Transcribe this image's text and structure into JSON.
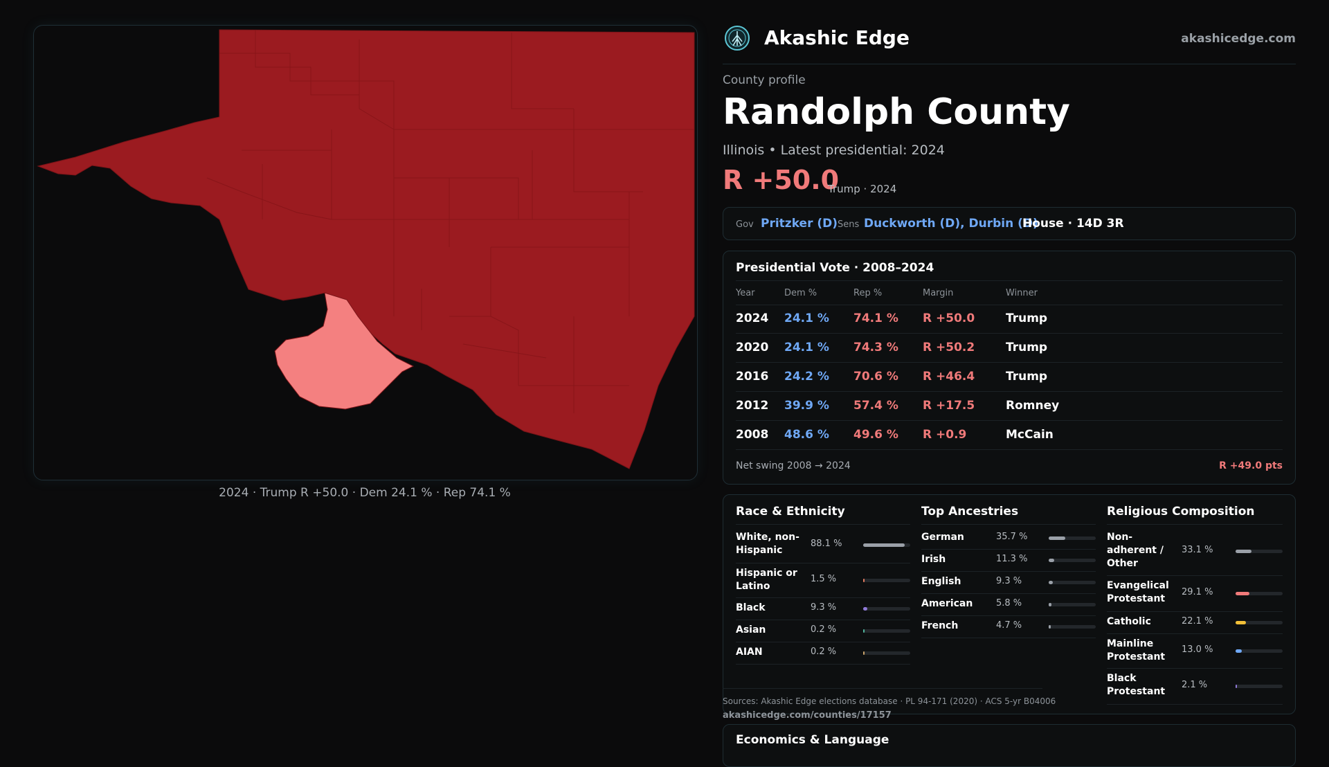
{
  "map": {
    "caption": "2024 · Trump R +50.0 · Dem 24.1 % · Rep 74.1 %",
    "colors": {
      "republican": "#9b1b20",
      "democrat_lean": "#f48080",
      "border": "#7a1418"
    }
  },
  "brand": {
    "name": "Akashic Edge",
    "site": "akashicedge.com",
    "logo_icon": "tree-of-life-icon"
  },
  "county": {
    "label": "County profile",
    "name": "Randolph County",
    "state_line": "Illinois • Latest presidential: 2024",
    "margin": "R +50.0",
    "margin_note": "Trump · 2024"
  },
  "officials": {
    "gov_label": "Gov",
    "gov": "Pritzker (D)",
    "sens_label": "Sens",
    "sens": "Duckworth (D), Durbin (D)",
    "house": "House · 14D 3R"
  },
  "presidential": {
    "title": "Presidential Vote · 2008–2024",
    "headers": {
      "year": "Year",
      "dem": "Dem %",
      "rep": "Rep %",
      "margin": "Margin",
      "winner": "Winner"
    },
    "rows": [
      {
        "year": "2024",
        "dem": "24.1 %",
        "rep": "74.1 %",
        "margin": "R +50.0",
        "winner": "Trump"
      },
      {
        "year": "2020",
        "dem": "24.1 %",
        "rep": "74.3 %",
        "margin": "R +50.2",
        "winner": "Trump"
      },
      {
        "year": "2016",
        "dem": "24.2 %",
        "rep": "70.6 %",
        "margin": "R +46.4",
        "winner": "Trump"
      },
      {
        "year": "2012",
        "dem": "39.9 %",
        "rep": "57.4 %",
        "margin": "R +17.5",
        "winner": "Romney"
      },
      {
        "year": "2008",
        "dem": "48.6 %",
        "rep": "49.6 %",
        "margin": "R +0.9",
        "winner": "McCain"
      }
    ],
    "swing_label": "Net swing 2008 → 2024",
    "swing_value": "R +49.0 pts"
  },
  "race": {
    "title": "Race & Ethnicity",
    "items": [
      {
        "name": "White, non-Hispanic",
        "value": "88.1 %",
        "pct": 88.1,
        "color": "#9aa0a8"
      },
      {
        "name": "Hispanic or Latino",
        "value": "1.5 %",
        "pct": 1.5,
        "color": "#e07a5f"
      },
      {
        "name": "Black",
        "value": "9.3 %",
        "pct": 9.3,
        "color": "#8f7ad8"
      },
      {
        "name": "Asian",
        "value": "0.2 %",
        "pct": 0.2,
        "color": "#4fb39a"
      },
      {
        "name": "AIAN",
        "value": "0.2 %",
        "pct": 0.2,
        "color": "#c9a36a"
      }
    ]
  },
  "ancestry": {
    "title": "Top Ancestries",
    "items": [
      {
        "name": "German",
        "value": "35.7 %",
        "pct": 35.7,
        "color": "#9aa0a8"
      },
      {
        "name": "Irish",
        "value": "11.3 %",
        "pct": 11.3,
        "color": "#9aa0a8"
      },
      {
        "name": "English",
        "value": "9.3 %",
        "pct": 9.3,
        "color": "#9aa0a8"
      },
      {
        "name": "American",
        "value": "5.8 %",
        "pct": 5.8,
        "color": "#9aa0a8"
      },
      {
        "name": "French",
        "value": "4.7 %",
        "pct": 4.7,
        "color": "#9aa0a8"
      }
    ]
  },
  "religion": {
    "title": "Religious Composition",
    "items": [
      {
        "name": "Non-adherent / Other",
        "value": "33.1 %",
        "pct": 33.1,
        "color": "#9aa0a8"
      },
      {
        "name": "Evangelical Protestant",
        "value": "29.1 %",
        "pct": 29.1,
        "color": "#f07a7a"
      },
      {
        "name": "Catholic",
        "value": "22.1 %",
        "pct": 22.1,
        "color": "#f2c038"
      },
      {
        "name": "Mainline Protestant",
        "value": "13.0 %",
        "pct": 13.0,
        "color": "#6fa8f5"
      },
      {
        "name": "Black Protestant",
        "value": "2.1 %",
        "pct": 2.1,
        "color": "#8f7ad8"
      }
    ]
  },
  "sources": {
    "text": "Sources: Akashic Edge elections database · PL 94-171 (2020) · ACS 5-yr B04006",
    "url": "akashicedge.com/counties/17157"
  },
  "economics": {
    "title": "Economics & Language"
  }
}
